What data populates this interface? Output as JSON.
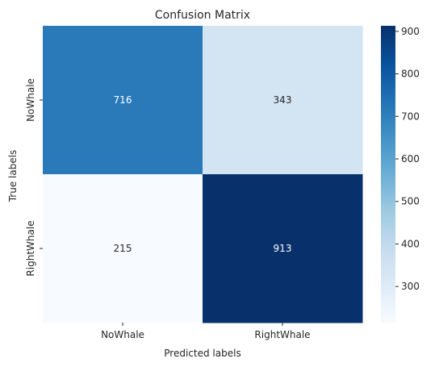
{
  "chart_data": {
    "type": "heatmap",
    "title": "Confusion Matrix",
    "xlabel": "Predicted labels",
    "ylabel": "True labels",
    "x_categories": [
      "NoWhale",
      "RightWhale"
    ],
    "y_categories": [
      "NoWhale",
      "RightWhale"
    ],
    "values": [
      [
        716,
        343
      ],
      [
        215,
        913
      ]
    ],
    "colormap": "Blues",
    "color_range": [
      215,
      913
    ],
    "colorbar_ticks": [
      300,
      400,
      500,
      600,
      700,
      800,
      900
    ],
    "colors": {
      "low": "#f7fbff",
      "high": "#08306b",
      "text_light": "#ffffff",
      "text_dark": "#262626"
    }
  }
}
